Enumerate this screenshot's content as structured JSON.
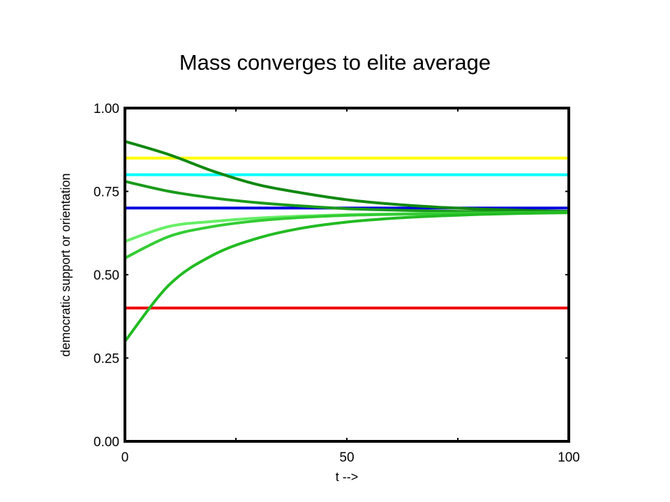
{
  "chart_data": {
    "type": "line",
    "title": "Mass converges to elite average",
    "xlabel": "t -->",
    "ylabel": "democratic support or orientation",
    "xlim": [
      0,
      100
    ],
    "ylim": [
      0,
      1
    ],
    "x_ticks": [
      "0",
      "50",
      "100"
    ],
    "y_ticks": [
      "0.00",
      "0.25",
      "0.50",
      "0.75",
      "1.00"
    ],
    "grid": false,
    "legend": "none",
    "x": [
      0,
      10,
      20,
      30,
      40,
      50,
      60,
      70,
      80,
      90,
      100
    ],
    "series": [
      {
        "color": "#ffff00",
        "values": [
          0.85,
          0.85,
          0.85,
          0.85,
          0.85,
          0.85,
          0.85,
          0.85,
          0.85,
          0.85,
          0.85
        ]
      },
      {
        "color": "#00ffff",
        "values": [
          0.8,
          0.8,
          0.8,
          0.8,
          0.8,
          0.8,
          0.8,
          0.8,
          0.8,
          0.8,
          0.8
        ]
      },
      {
        "color": "#0000dd",
        "values": [
          0.7,
          0.7,
          0.7,
          0.7,
          0.7,
          0.7,
          0.7,
          0.7,
          0.7,
          0.7,
          0.7
        ]
      },
      {
        "color": "#ee0000",
        "values": [
          0.4,
          0.4,
          0.4,
          0.4,
          0.4,
          0.4,
          0.4,
          0.4,
          0.4,
          0.4,
          0.4
        ]
      },
      {
        "color": "#118811",
        "values": [
          0.9,
          0.86,
          0.81,
          0.77,
          0.745,
          0.725,
          0.712,
          0.703,
          0.697,
          0.693,
          0.69
        ]
      },
      {
        "color": "#1a9a1a",
        "values": [
          0.78,
          0.75,
          0.73,
          0.716,
          0.706,
          0.698,
          0.694,
          0.691,
          0.689,
          0.688,
          0.687
        ]
      },
      {
        "color": "#66ee66",
        "values": [
          0.6,
          0.645,
          0.66,
          0.67,
          0.676,
          0.68,
          0.682,
          0.684,
          0.685,
          0.686,
          0.687
        ]
      },
      {
        "color": "#33cc33",
        "values": [
          0.55,
          0.615,
          0.645,
          0.662,
          0.672,
          0.678,
          0.681,
          0.683,
          0.685,
          0.686,
          0.687
        ]
      },
      {
        "color": "#22bb22",
        "values": [
          0.3,
          0.47,
          0.56,
          0.61,
          0.64,
          0.658,
          0.669,
          0.676,
          0.681,
          0.684,
          0.686
        ]
      }
    ]
  }
}
